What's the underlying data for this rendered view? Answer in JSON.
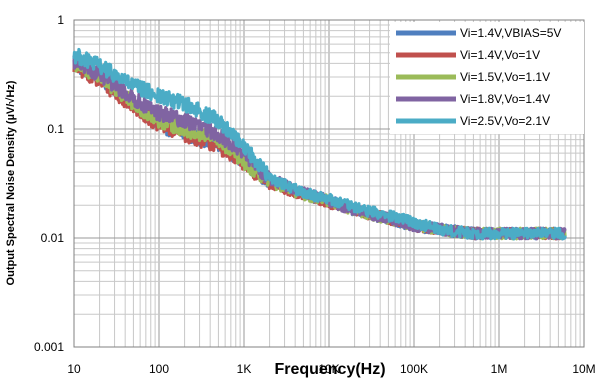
{
  "chart_data": {
    "type": "line",
    "title": "",
    "xlabel": "Frequency(Hz)",
    "ylabel": "Output Spectral Noise Density (µV/√Hz)",
    "x_scale": "log",
    "y_scale": "log",
    "xlim": [
      10,
      10000000
    ],
    "ylim": [
      0.001,
      1
    ],
    "x_ticks": [
      {
        "value": 10,
        "label": "10"
      },
      {
        "value": 100,
        "label": "100"
      },
      {
        "value": 1000,
        "label": "1K"
      },
      {
        "value": 10000,
        "label": "10K"
      },
      {
        "value": 100000,
        "label": "100K"
      },
      {
        "value": 1000000,
        "label": "1M"
      },
      {
        "value": 10000000,
        "label": "10M"
      }
    ],
    "y_ticks": [
      {
        "value": 0.001,
        "label": "0.001"
      },
      {
        "value": 0.01,
        "label": "0.01"
      },
      {
        "value": 0.1,
        "label": "0.1"
      },
      {
        "value": 1,
        "label": "1"
      }
    ],
    "grid": true,
    "legend_position": "top-right",
    "series": [
      {
        "name": "Vi=1.4V,VBIAS=5V",
        "color": "#4f7fbf",
        "x": [
          10,
          20,
          50,
          100,
          200,
          500,
          1000,
          2000,
          5000,
          10000,
          20000,
          50000,
          100000,
          200000,
          500000,
          1000000,
          2000000,
          6000000
        ],
        "y": [
          0.4,
          0.3,
          0.17,
          0.11,
          0.09,
          0.075,
          0.05,
          0.033,
          0.025,
          0.022,
          0.018,
          0.015,
          0.013,
          0.012,
          0.011,
          0.011,
          0.011,
          0.011
        ]
      },
      {
        "name": "Vi=1.4V,Vo=1V",
        "color": "#c0504d",
        "x": [
          10,
          20,
          50,
          100,
          200,
          500,
          1000,
          2000,
          5000,
          10000,
          20000,
          50000,
          100000,
          200000,
          500000,
          1000000,
          2000000,
          6000000
        ],
        "y": [
          0.38,
          0.28,
          0.16,
          0.11,
          0.09,
          0.07,
          0.048,
          0.032,
          0.025,
          0.021,
          0.018,
          0.015,
          0.013,
          0.012,
          0.011,
          0.011,
          0.011,
          0.011
        ]
      },
      {
        "name": "Vi=1.5V,Vo=1.1V",
        "color": "#9bbb59",
        "x": [
          10,
          20,
          50,
          100,
          200,
          500,
          1000,
          2000,
          5000,
          10000,
          20000,
          50000,
          100000,
          200000,
          500000,
          1000000,
          2000000,
          6000000
        ],
        "y": [
          0.4,
          0.3,
          0.17,
          0.12,
          0.1,
          0.08,
          0.05,
          0.033,
          0.025,
          0.022,
          0.018,
          0.015,
          0.013,
          0.012,
          0.011,
          0.011,
          0.011,
          0.011
        ]
      },
      {
        "name": "Vi=1.8V,Vo=1.4V",
        "color": "#8064a2",
        "x": [
          10,
          20,
          50,
          100,
          200,
          500,
          1000,
          2000,
          5000,
          10000,
          20000,
          50000,
          100000,
          200000,
          500000,
          1000000,
          2000000,
          6000000
        ],
        "y": [
          0.42,
          0.32,
          0.19,
          0.14,
          0.12,
          0.09,
          0.06,
          0.035,
          0.026,
          0.022,
          0.018,
          0.015,
          0.013,
          0.012,
          0.011,
          0.011,
          0.011,
          0.011
        ]
      },
      {
        "name": "Vi=2.5V,Vo=2.1V",
        "color": "#4bacc6",
        "x": [
          10,
          20,
          50,
          100,
          200,
          500,
          1000,
          2000,
          5000,
          10000,
          20000,
          50000,
          100000,
          200000,
          500000,
          1000000,
          2000000,
          6000000
        ],
        "y": [
          0.48,
          0.38,
          0.25,
          0.2,
          0.17,
          0.12,
          0.07,
          0.036,
          0.026,
          0.023,
          0.019,
          0.016,
          0.014,
          0.012,
          0.011,
          0.011,
          0.011,
          0.011
        ]
      }
    ]
  }
}
